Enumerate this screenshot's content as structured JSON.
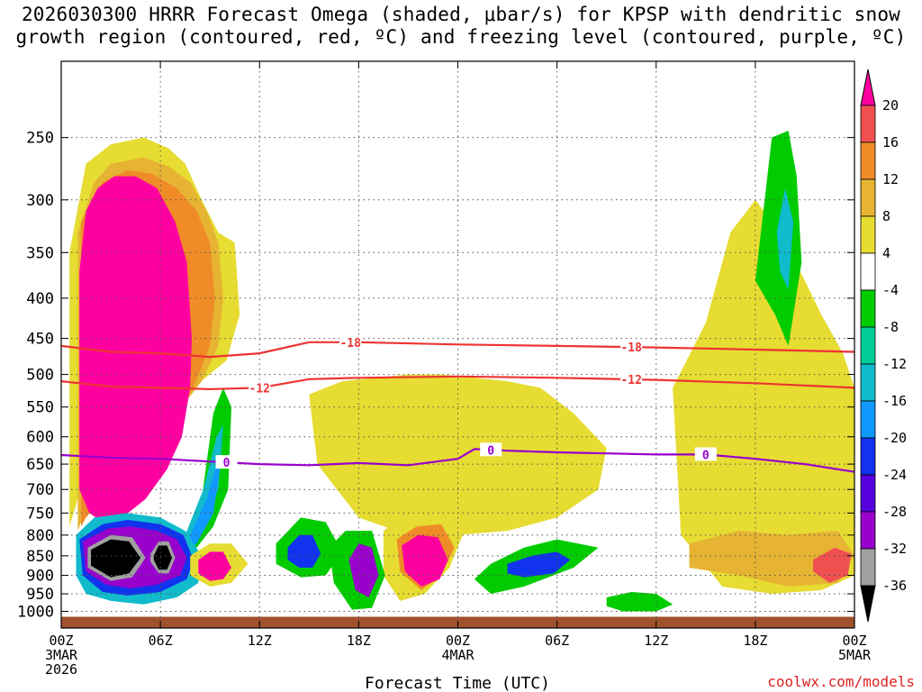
{
  "title_line1": "2026030300 HRRR Forecast Omega (shaded, μbar/s) for KPSP with dendritic snow",
  "title_line2": "growth region (contoured, red, ºC) and freezing level (contoured, purple, ºC)",
  "credit": "coolwx.com/models",
  "chart_data": {
    "type": "heatmap",
    "title": "2026030300 HRRR Forecast Omega (shaded, μbar/s) for KPSP with dendritic snow growth region (contoured, red, ºC) and freezing level (contoured, purple, ºC)",
    "xlabel": "Forecast Time (UTC)",
    "ylabel": "",
    "x_ticks": [
      {
        "hour": 0,
        "label": [
          "00Z",
          "3MAR",
          "2026"
        ]
      },
      {
        "hour": 6,
        "label": [
          "06Z"
        ]
      },
      {
        "hour": 12,
        "label": [
          "12Z"
        ]
      },
      {
        "hour": 18,
        "label": [
          "18Z"
        ]
      },
      {
        "hour": 24,
        "label": [
          "00Z",
          "4MAR"
        ]
      },
      {
        "hour": 30,
        "label": [
          "06Z"
        ]
      },
      {
        "hour": 36,
        "label": [
          "12Z"
        ]
      },
      {
        "hour": 42,
        "label": [
          "18Z"
        ]
      },
      {
        "hour": 48,
        "label": [
          "00Z",
          "5MAR"
        ]
      }
    ],
    "xlim": [
      0,
      48
    ],
    "y_scale": "log-pressure, inverted",
    "ylim": [
      1050,
      200
    ],
    "y_ticks": [
      250,
      300,
      350,
      400,
      450,
      500,
      550,
      600,
      650,
      700,
      750,
      800,
      850,
      900,
      950,
      1000
    ],
    "grid": true,
    "colorbar": {
      "levels": [
        -36,
        -32,
        -28,
        -24,
        -20,
        -16,
        -12,
        -8,
        -4,
        4,
        8,
        12,
        16,
        20
      ],
      "colors": [
        "#000000",
        "#a0a0a0",
        "#9900cc",
        "#5500dd",
        "#1133ee",
        "#1199ff",
        "#11bbcc",
        "#00cc99",
        "#00cc00",
        "#ffffff",
        "#e6dc32",
        "#e6b432",
        "#f08c28",
        "#f05050",
        "#ff00a0"
      ]
    },
    "contours": [
      {
        "name": "-18",
        "color": "#ee3333",
        "hours": [
          0,
          3,
          6,
          9,
          12,
          15,
          18,
          24,
          30,
          36,
          42,
          48
        ],
        "pressure": [
          460,
          468,
          470,
          475,
          470,
          455,
          455,
          458,
          460,
          462,
          465,
          468
        ]
      },
      {
        "name": "-12",
        "color": "#ee3333",
        "hours": [
          0,
          3,
          6,
          9,
          12,
          15,
          18,
          24,
          30,
          36,
          42,
          48
        ],
        "pressure": [
          510,
          518,
          520,
          522,
          520,
          507,
          505,
          503,
          505,
          508,
          513,
          520
        ]
      },
      {
        "name": "0",
        "color": "#9900cc",
        "hours": [
          0,
          3,
          6,
          9,
          12,
          15,
          18,
          21,
          24,
          25,
          27,
          30,
          33,
          36,
          39,
          42,
          45,
          48
        ],
        "pressure": [
          633,
          638,
          640,
          645,
          650,
          652,
          648,
          652,
          640,
          622,
          625,
          628,
          630,
          632,
          632,
          640,
          650,
          665
        ]
      }
    ],
    "regions": [
      {
        "color": "#e6dc32",
        "hours": [
          0.5,
          1.5,
          3,
          5,
          6.5,
          7.5,
          8.5,
          9.5,
          10.5,
          10.8,
          10,
          8,
          6,
          4,
          2,
          1,
          0.5
        ],
        "pressure": [
          350,
          270,
          255,
          250,
          258,
          270,
          300,
          330,
          340,
          420,
          480,
          520,
          560,
          600,
          660,
          720,
          780
        ]
      },
      {
        "color": "#e6b432",
        "hours": [
          1,
          2,
          3,
          5,
          6.5,
          7.8,
          8.8,
          9.5,
          9.8,
          9.5,
          8.5,
          7,
          5,
          3,
          1.5,
          1
        ],
        "pressure": [
          330,
          285,
          270,
          265,
          272,
          285,
          310,
          340,
          400,
          460,
          510,
          560,
          620,
          680,
          740,
          790
        ]
      },
      {
        "color": "#f08c28",
        "hours": [
          1.2,
          2.5,
          4,
          5.5,
          7,
          8.2,
          9,
          9.3,
          9,
          8,
          6.5,
          5,
          3,
          1.5,
          1.2
        ],
        "pressure": [
          320,
          285,
          275,
          278,
          290,
          310,
          340,
          400,
          460,
          520,
          580,
          640,
          700,
          760,
          780
        ]
      },
      {
        "color": "#ff00a0",
        "hours": [
          1.1,
          1.5,
          2.2,
          3.2,
          4.5,
          5.8,
          6.9,
          7.6,
          7.9,
          7.8,
          7.3,
          6.4,
          5.1,
          3.7,
          2.5,
          1.7,
          1.1
        ],
        "pressure": [
          370,
          310,
          290,
          280,
          280,
          290,
          320,
          360,
          450,
          520,
          600,
          660,
          720,
          760,
          770,
          750,
          700
        ]
      },
      {
        "color": "#e6dc32",
        "hours": [
          15,
          17,
          19,
          21,
          23,
          25,
          27,
          29,
          31,
          33,
          32.5,
          30,
          27,
          24,
          21,
          18,
          15.5
        ],
        "pressure": [
          530,
          510,
          505,
          500,
          500,
          505,
          510,
          520,
          560,
          620,
          700,
          760,
          790,
          800,
          800,
          760,
          650
        ]
      },
      {
        "color": "#e6dc32",
        "hours": [
          37,
          39,
          40.5,
          42,
          43.5,
          45,
          46,
          47.3,
          48,
          48,
          46,
          43,
          40,
          37.5
        ],
        "pressure": [
          520,
          430,
          330,
          300,
          330,
          380,
          420,
          470,
          520,
          900,
          940,
          950,
          930,
          800
        ]
      },
      {
        "color": "#00cc00",
        "hours": [
          42,
          43,
          44,
          44.5,
          44.8,
          44,
          43.2
        ],
        "pressure": [
          380,
          250,
          245,
          280,
          360,
          460,
          420
        ]
      },
      {
        "color": "#11bbcc",
        "hours": [
          43.3,
          43.8,
          44.3,
          44,
          43.5
        ],
        "pressure": [
          330,
          290,
          320,
          390,
          370
        ]
      },
      {
        "color": "#00cc00",
        "hours": [
          9.2,
          9.8,
          10.3,
          10.1,
          9.2,
          8,
          6.5,
          5,
          4.5,
          6,
          7.5,
          8.5
        ],
        "pressure": [
          560,
          520,
          550,
          700,
          780,
          840,
          880,
          940,
          980,
          930,
          850,
          720
        ]
      },
      {
        "color": "#11bbcc",
        "hours": [
          9.4,
          9.8,
          9.5,
          8.5,
          7.4,
          6.6,
          7.5,
          8.6
        ],
        "pressure": [
          600,
          580,
          700,
          790,
          840,
          860,
          800,
          700
        ]
      },
      {
        "color": "#1199ff",
        "hours": [
          9.4,
          9.7,
          9.2,
          8.2,
          7.3,
          7.8,
          8.8
        ],
        "pressure": [
          650,
          640,
          750,
          820,
          850,
          800,
          720
        ]
      },
      {
        "color": "#11bbcc",
        "hours": [
          0.9,
          2,
          4,
          6,
          7.5,
          8.5,
          8.3,
          7,
          5,
          3,
          1.5,
          0.9
        ],
        "pressure": [
          800,
          760,
          750,
          760,
          790,
          850,
          920,
          960,
          980,
          970,
          950,
          900
        ]
      },
      {
        "color": "#1133ee",
        "hours": [
          1.1,
          2.5,
          4,
          6,
          7.4,
          8,
          7.6,
          6,
          4,
          2.5,
          1.3
        ],
        "pressure": [
          810,
          775,
          765,
          775,
          800,
          860,
          910,
          945,
          955,
          945,
          900
        ]
      },
      {
        "color": "#9900cc",
        "hours": [
          1.3,
          2.8,
          4.2,
          5.8,
          7,
          7.6,
          7.2,
          5.8,
          4.2,
          2.7,
          1.5
        ],
        "pressure": [
          815,
          785,
          780,
          790,
          810,
          855,
          900,
          925,
          935,
          925,
          890
        ]
      },
      {
        "color": "#a0a0a0",
        "hours": [
          1.6,
          3,
          4.3,
          5.1,
          4.3,
          3,
          1.6
        ],
        "pressure": [
          830,
          800,
          805,
          855,
          905,
          915,
          880
        ]
      },
      {
        "color": "#000000",
        "hours": [
          1.8,
          3,
          4.1,
          4.8,
          4.1,
          3,
          1.8
        ],
        "pressure": [
          835,
          810,
          815,
          855,
          895,
          905,
          875
        ]
      },
      {
        "color": "#a0a0a0",
        "hours": [
          5.4,
          5.9,
          6.5,
          6.9,
          6.5,
          5.9,
          5.4
        ],
        "pressure": [
          845,
          815,
          815,
          855,
          895,
          895,
          865
        ]
      },
      {
        "color": "#000000",
        "hours": [
          5.6,
          5.9,
          6.4,
          6.7,
          6.4,
          5.9,
          5.6
        ],
        "pressure": [
          850,
          825,
          825,
          855,
          885,
          885,
          860
        ]
      },
      {
        "color": "#e6dc32",
        "hours": [
          7.8,
          9,
          10.3,
          11.3,
          10.3,
          9,
          7.8
        ],
        "pressure": [
          850,
          820,
          820,
          870,
          920,
          930,
          900
        ]
      },
      {
        "color": "#ff00a0",
        "hours": [
          8.3,
          9,
          9.8,
          10.3,
          9.8,
          9,
          8.3
        ],
        "pressure": [
          860,
          840,
          840,
          880,
          910,
          915,
          895
        ]
      },
      {
        "color": "#00cc00",
        "hours": [
          13,
          14.5,
          16,
          17,
          16,
          14.5,
          13
        ],
        "pressure": [
          820,
          760,
          770,
          840,
          900,
          905,
          870
        ]
      },
      {
        "color": "#1133ee",
        "hours": [
          13.7,
          14.4,
          15.2,
          15.7,
          15.2,
          14.4,
          13.7
        ],
        "pressure": [
          830,
          800,
          800,
          845,
          880,
          880,
          860
        ]
      },
      {
        "color": "#e6dc32",
        "hours": [
          19.5,
          21,
          23,
          24.5,
          23.5,
          22,
          20.5,
          19.5
        ],
        "pressure": [
          790,
          750,
          740,
          780,
          880,
          950,
          970,
          900
        ]
      },
      {
        "color": "#f08c28",
        "hours": [
          20.3,
          21.5,
          23,
          23.8,
          23,
          21.8,
          20.5
        ],
        "pressure": [
          810,
          780,
          775,
          830,
          900,
          940,
          890
        ]
      },
      {
        "color": "#ff00a0",
        "hours": [
          20.6,
          21.6,
          22.8,
          23.4,
          22.9,
          21.8,
          20.8
        ],
        "pressure": [
          825,
          800,
          805,
          860,
          910,
          930,
          890
        ]
      },
      {
        "color": "#00cc00",
        "hours": [
          16.2,
          17.2,
          18.8,
          19.6,
          18.8,
          17.6,
          16.5
        ],
        "pressure": [
          830,
          790,
          790,
          900,
          990,
          995,
          920
        ]
      },
      {
        "color": "#9900cc",
        "hours": [
          17.4,
          18,
          18.8,
          19.2,
          18.6,
          17.8
        ],
        "pressure": [
          860,
          820,
          830,
          900,
          960,
          940
        ]
      },
      {
        "color": "#00cc00",
        "hours": [
          26,
          28,
          30,
          32.5,
          31,
          28,
          26,
          25
        ],
        "pressure": [
          870,
          830,
          810,
          830,
          880,
          930,
          950,
          910
        ]
      },
      {
        "color": "#1133ee",
        "hours": [
          27,
          28.5,
          30,
          30.8,
          29.8,
          28,
          27
        ],
        "pressure": [
          870,
          850,
          840,
          860,
          895,
          905,
          895
        ]
      },
      {
        "color": "#e6b432",
        "hours": [
          38,
          41,
          44,
          47,
          48,
          47,
          44,
          41,
          38
        ],
        "pressure": [
          820,
          790,
          800,
          790,
          850,
          920,
          930,
          900,
          880
        ]
      },
      {
        "color": "#f05050",
        "hours": [
          45.5,
          46.8,
          47.8,
          47.6,
          46.5,
          45.5
        ],
        "pressure": [
          860,
          830,
          845,
          900,
          920,
          890
        ]
      },
      {
        "color": "#00cc00",
        "hours": [
          33,
          34.5,
          36,
          37,
          36,
          34,
          33
        ],
        "pressure": [
          960,
          945,
          950,
          980,
          1000,
          1000,
          985
        ]
      }
    ]
  }
}
